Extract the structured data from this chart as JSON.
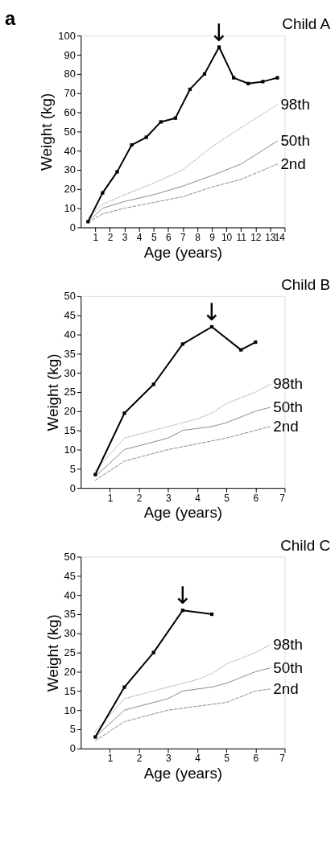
{
  "chart_data": [
    {
      "type": "line",
      "title": "Child A",
      "xlabel": "Age (years)",
      "ylabel": "Weight (kg)",
      "annotations": [
        "a",
        {
          "text": "↓",
          "x": 9.5,
          "y": 94
        }
      ],
      "xlim": [
        0,
        14
      ],
      "xticks": [
        1,
        2,
        3,
        4,
        5,
        6,
        7,
        8,
        9,
        10,
        11,
        12,
        13,
        14
      ],
      "ylim": [
        0,
        100
      ],
      "yticks": [
        0,
        10,
        20,
        30,
        40,
        50,
        60,
        70,
        80,
        90,
        100
      ],
      "grid": false,
      "series": [
        {
          "color": "#000000",
          "marker": "square",
          "line_style": "solid",
          "x": [
            0.5,
            1.5,
            2.5,
            3.5,
            4.5,
            5.5,
            6.5,
            7.5,
            8.5,
            9.5,
            10.5,
            11.5,
            12.5,
            13.5
          ],
          "values": [
            3,
            18,
            29,
            43,
            47,
            55,
            57,
            72,
            80,
            94,
            78,
            75,
            76,
            78
          ]
        },
        {
          "name": "98th",
          "color": "#8a8a8a",
          "marker": "none",
          "line_style": "dotted",
          "x": [
            0.5,
            1.5,
            3,
            5,
            7,
            9,
            11,
            13.5
          ],
          "values": [
            5,
            12,
            17,
            23,
            30,
            42,
            52,
            64
          ]
        },
        {
          "name": "50th",
          "color": "#8a8a8a",
          "marker": "none",
          "line_style": "solid",
          "x": [
            0.5,
            1.5,
            3,
            5,
            7,
            9,
            11,
            13.5
          ],
          "values": [
            3,
            10,
            13.5,
            17,
            21.5,
            27,
            33,
            45
          ]
        },
        {
          "name": "2nd",
          "color": "#8a8a8a",
          "marker": "none",
          "line_style": "dashed",
          "x": [
            0.5,
            1.5,
            3,
            5,
            7,
            9,
            11,
            13.5
          ],
          "values": [
            2.5,
            7,
            10,
            13,
            16,
            21,
            25,
            33
          ]
        }
      ]
    },
    {
      "type": "line",
      "title": "Child B",
      "xlabel": "Age (years)",
      "ylabel": "Weight (kg)",
      "annotations": [
        {
          "text": "↓",
          "x": 4.5,
          "y": 42
        }
      ],
      "xlim": [
        0,
        7
      ],
      "xticks": [
        1,
        2,
        3,
        4,
        5,
        6,
        7
      ],
      "ylim": [
        0,
        50
      ],
      "yticks": [
        0,
        5,
        10,
        15,
        20,
        25,
        30,
        35,
        40,
        45,
        50
      ],
      "grid": false,
      "series": [
        {
          "color": "#000000",
          "marker": "square",
          "line_style": "solid",
          "x": [
            0.5,
            1.5,
            2.5,
            3.5,
            4.5,
            5.5,
            6
          ],
          "values": [
            3.5,
            19.5,
            27,
            37.5,
            42,
            36,
            38
          ]
        },
        {
          "name": "98th",
          "color": "#8a8a8a",
          "marker": "none",
          "line_style": "dotted",
          "x": [
            0.5,
            1.5,
            2,
            3,
            4,
            4.5,
            5,
            6,
            6.5
          ],
          "values": [
            4.5,
            13,
            14,
            16,
            18,
            19.5,
            22,
            25,
            27
          ]
        },
        {
          "name": "50th",
          "color": "#8a8a8a",
          "marker": "none",
          "line_style": "solid",
          "x": [
            0.5,
            1.5,
            2,
            3,
            3.5,
            4.5,
            5,
            6,
            6.5
          ],
          "values": [
            3,
            10,
            11,
            13,
            15,
            16,
            17,
            20,
            21
          ]
        },
        {
          "name": "2nd",
          "color": "#8a8a8a",
          "marker": "none",
          "line_style": "dashed",
          "x": [
            0.5,
            1.5,
            2,
            3,
            4,
            5,
            6,
            6.5
          ],
          "values": [
            2,
            7,
            8,
            10,
            11.5,
            13,
            15,
            16
          ]
        }
      ]
    },
    {
      "type": "line",
      "title": "Child C",
      "xlabel": "Age (years)",
      "ylabel": "Weight (kg)",
      "annotations": [
        {
          "text": "↓",
          "x": 3.5,
          "y": 36
        }
      ],
      "xlim": [
        0,
        7
      ],
      "xticks": [
        1,
        2,
        3,
        4,
        5,
        6,
        7
      ],
      "ylim": [
        0,
        50
      ],
      "yticks": [
        0,
        5,
        10,
        15,
        20,
        25,
        30,
        35,
        40,
        45,
        50
      ],
      "grid": false,
      "series": [
        {
          "color": "#000000",
          "marker": "square",
          "line_style": "solid",
          "x": [
            0.5,
            1.5,
            2.5,
            3.5,
            4.5
          ],
          "values": [
            3,
            16,
            25,
            36,
            35
          ]
        },
        {
          "name": "98th",
          "color": "#8a8a8a",
          "marker": "none",
          "line_style": "dotted",
          "x": [
            0.5,
            1.5,
            2,
            3,
            4,
            4.5,
            5,
            6,
            6.5
          ],
          "values": [
            4.5,
            13,
            14,
            16,
            18,
            19.5,
            22,
            25,
            27
          ]
        },
        {
          "name": "50th",
          "color": "#8a8a8a",
          "marker": "none",
          "line_style": "solid",
          "x": [
            0.5,
            1.5,
            2,
            3,
            3.5,
            4.5,
            5,
            6,
            6.5
          ],
          "values": [
            3,
            10,
            11,
            13,
            15,
            16,
            17,
            20,
            21
          ]
        },
        {
          "name": "2nd",
          "color": "#8a8a8a",
          "marker": "none",
          "line_style": "dashed",
          "x": [
            0.5,
            1.5,
            2,
            3,
            4,
            5,
            6,
            6.5
          ],
          "values": [
            2,
            7,
            8,
            10,
            11,
            12,
            15,
            15.5
          ]
        }
      ]
    }
  ]
}
